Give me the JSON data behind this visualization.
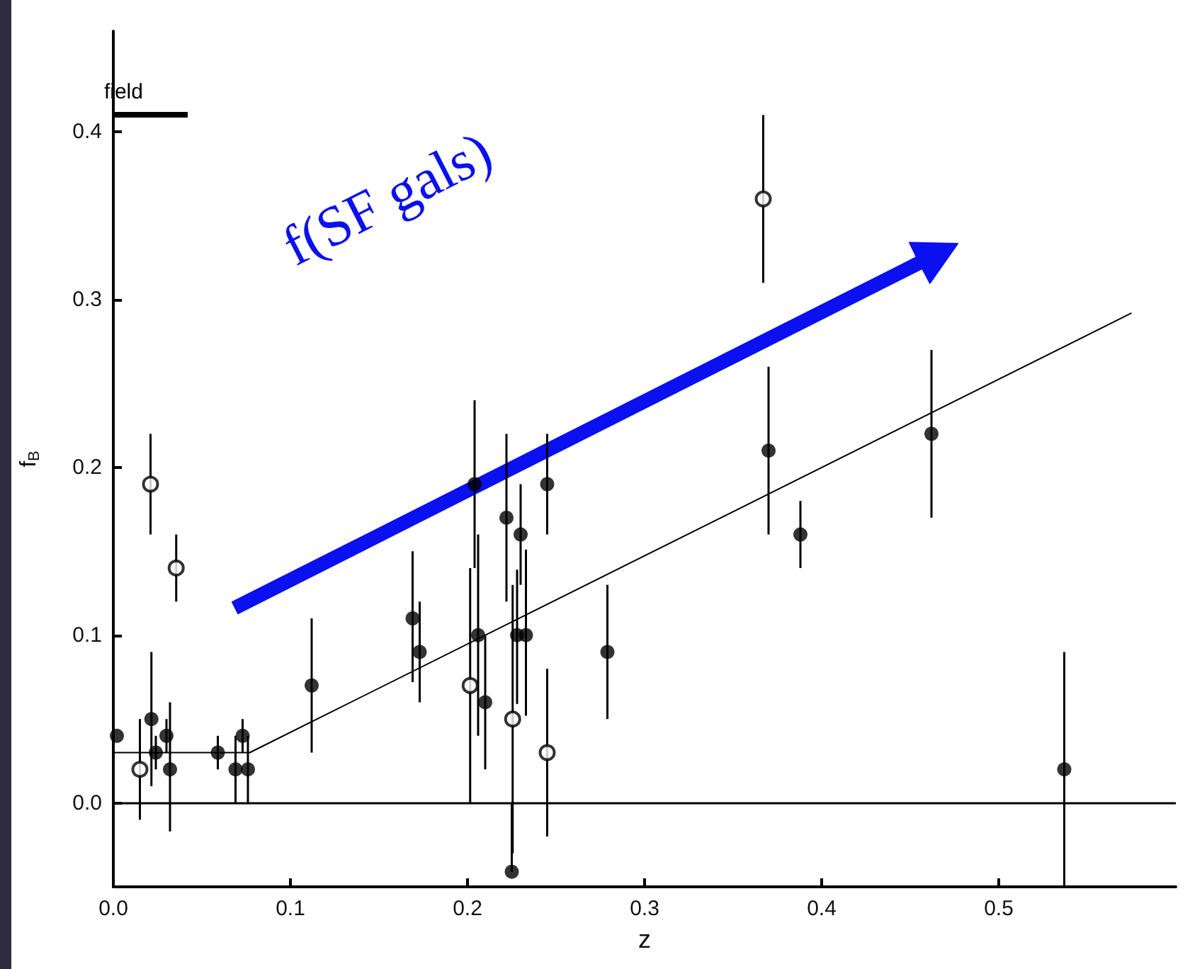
{
  "chart_data": {
    "type": "scatter",
    "xlabel": "z",
    "ylabel": "f$_{B}$",
    "xlim": [
      0,
      0.6
    ],
    "ylim": [
      -0.05,
      0.46
    ],
    "xticks": [
      {
        "value": 0,
        "label": "0.0"
      },
      {
        "value": 0.1,
        "label": "0.1"
      },
      {
        "value": 0.2,
        "label": "0.2"
      },
      {
        "value": 0.3,
        "label": "0.3"
      },
      {
        "value": 0.4,
        "label": "0.4"
      },
      {
        "value": 0.5,
        "label": "0.5"
      }
    ],
    "yticks": [
      {
        "value": 0,
        "label": "0.0"
      },
      {
        "value": 0.1,
        "label": "0.1"
      },
      {
        "value": 0.2,
        "label": "0.2"
      },
      {
        "value": 0.3,
        "label": "0.3"
      },
      {
        "value": 0.4,
        "label": "0.4"
      }
    ],
    "marker": "circle",
    "series": [
      {
        "color": "#000000",
        "x": [
          0.002,
          0.0215,
          0.024,
          0.03,
          0.032,
          0.059,
          0.069,
          0.073,
          0.076,
          0.112,
          0.169,
          0.173,
          0.204,
          0.206,
          0.21,
          0.222,
          0.225,
          0.228,
          0.23,
          0.233,
          0.245,
          0.279,
          0.37,
          0.388,
          0.462,
          0.537
        ],
        "values": [
          0.04,
          0.05,
          0.03,
          0.04,
          0.02,
          0.03,
          0.02,
          0.04,
          0.02,
          0.07,
          0.11,
          0.09,
          0.19,
          0.1,
          0.06,
          0.17,
          -0.041,
          0.1,
          0.16,
          0.1,
          0.19,
          0.09,
          0.21,
          0.16,
          0.22,
          0.02
        ],
        "errors": [
          null,
          [
            0.01,
            0.09
          ],
          [
            0.02,
            0.04
          ],
          [
            0.03,
            0.05
          ],
          [
            -0.017,
            0.06
          ],
          [
            0.02,
            0.04
          ],
          [
            0.0,
            0.04
          ],
          [
            0.03,
            0.05
          ],
          [
            0.0,
            0.04
          ],
          [
            0.03,
            0.11
          ],
          [
            0.072,
            0.15
          ],
          [
            0.06,
            0.12
          ],
          [
            0.14,
            0.24
          ],
          [
            0.04,
            0.16
          ],
          [
            0.02,
            0.1
          ],
          [
            0.12,
            0.22
          ],
          [
            -0.041,
            0.0
          ],
          [
            0.059,
            0.139
          ],
          [
            0.13,
            0.19
          ],
          [
            0.052,
            0.151
          ],
          [
            0.16,
            0.22
          ],
          [
            0.05,
            0.13
          ],
          [
            0.16,
            0.26
          ],
          [
            0.14,
            0.18
          ],
          [
            0.17,
            0.27
          ],
          [
            -0.05,
            0.09
          ]
        ]
      },
      {
        "color": "#000000",
        "x": [
          0.015,
          0.021,
          0.0355,
          0.2015,
          0.2255,
          0.245,
          0.367
        ],
        "values": [
          0.02,
          0.19,
          0.14,
          0.07,
          0.05,
          0.03,
          0.36
        ],
        "errors": [
          [
            -0.01,
            0.05
          ],
          [
            0.16,
            0.22
          ],
          [
            0.12,
            0.16
          ],
          [
            0.0,
            0.14
          ],
          [
            -0.03,
            0.13
          ],
          [
            -0.02,
            0.08
          ],
          [
            0.31,
            0.41
          ]
        ]
      },
      {
        "type": "line",
        "color": "#000000",
        "marker": "none",
        "x": [
          0,
          0.077,
          0.575
        ],
        "values": [
          0.03,
          0.03,
          0.292
        ]
      }
    ],
    "ref_lines": [
      {
        "axis": "y",
        "value": 0,
        "color": "#000000"
      },
      {
        "axis": "y",
        "value": 0.41,
        "label": "field",
        "color": "#000000"
      }
    ],
    "annotations": [
      "f(SF gals)"
    ]
  }
}
